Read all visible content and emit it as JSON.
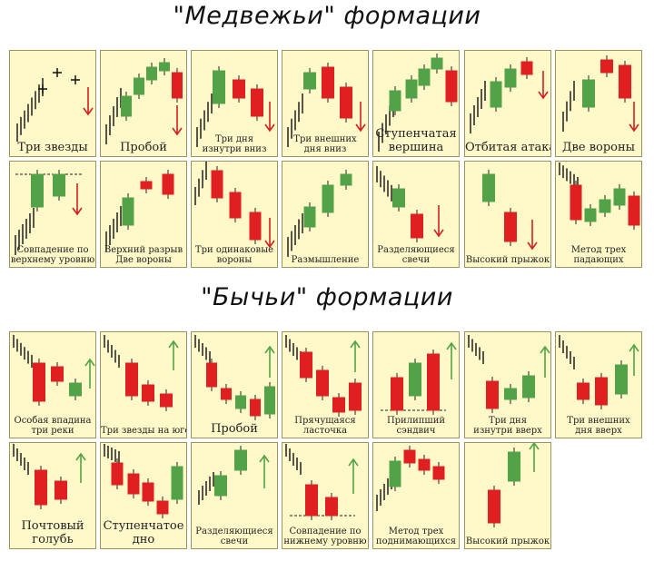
{
  "bear_title": "\"Медвежьи\" формации",
  "bull_title": "\"Бычьи\" формации",
  "colors": {
    "green": "#52a347",
    "red": "#e02020",
    "arrow_red": "#d02020",
    "arrow_green": "#52a347",
    "stick": "#111111"
  },
  "bear_panels": [
    {
      "lines": [
        "Три звезды"
      ],
      "size": "big"
    },
    {
      "lines": [
        "Пробой"
      ],
      "size": "big"
    },
    {
      "lines": [
        "Три дня",
        "изнутри вниз"
      ],
      "size": "small"
    },
    {
      "lines": [
        "Три внешних",
        "дня вниз"
      ],
      "size": "small"
    },
    {
      "lines": [
        "Ступенчатая",
        "вершина"
      ],
      "size": "big"
    },
    {
      "lines": [
        "Отбитая атака"
      ],
      "size": "big"
    },
    {
      "lines": [
        "Две вороны"
      ],
      "size": "big"
    },
    {
      "lines": [
        "Совпадение по",
        "верхнему уровню"
      ],
      "size": "small"
    },
    {
      "lines": [
        "Верхний разрыв",
        "Две вороны"
      ],
      "size": "small"
    },
    {
      "lines": [
        "Три одинаковые",
        "вороны"
      ],
      "size": "small"
    },
    {
      "lines": [
        "Размышление"
      ],
      "size": "small"
    },
    {
      "lines": [
        "Разделяющиеся",
        "свечи"
      ],
      "size": "small"
    },
    {
      "lines": [
        "Высокий прыжок"
      ],
      "size": "small"
    },
    {
      "lines": [
        "Метод трех",
        "падающих"
      ],
      "size": "small"
    }
  ],
  "bull_panels": [
    {
      "lines": [
        "Особая впадина",
        "три реки"
      ],
      "size": "small"
    },
    {
      "lines": [
        "Три звезды на юге"
      ],
      "size": "small"
    },
    {
      "lines": [
        "Пробой"
      ],
      "size": "big"
    },
    {
      "lines": [
        "Прячущаяся",
        "ласточка"
      ],
      "size": "small"
    },
    {
      "lines": [
        "Прилипший",
        "сэндвич"
      ],
      "size": "small"
    },
    {
      "lines": [
        "Три дня",
        "изнутри вверх"
      ],
      "size": "small"
    },
    {
      "lines": [
        "Три внешних",
        "дня вверх"
      ],
      "size": "small"
    },
    {
      "lines": [
        "Почтовый",
        "голубь"
      ],
      "size": "big"
    },
    {
      "lines": [
        "Ступенчатое",
        "дно"
      ],
      "size": "big"
    },
    {
      "lines": [
        "Разделяющиеся",
        "свечи"
      ],
      "size": "small"
    },
    {
      "lines": [
        "Совпадение по",
        "нижнему уровню"
      ],
      "size": "small"
    },
    {
      "lines": [
        "Метод трех",
        "поднимающихся"
      ],
      "size": "small"
    },
    {
      "lines": [
        "Высокий прыжок"
      ],
      "size": "small"
    }
  ]
}
